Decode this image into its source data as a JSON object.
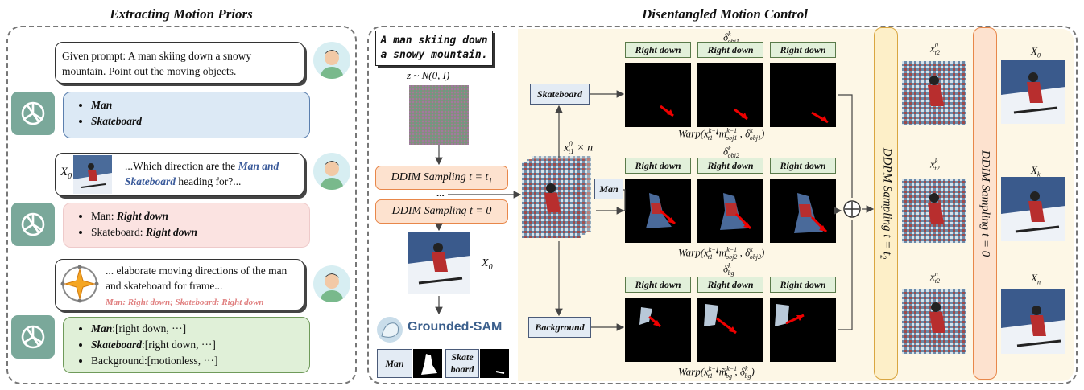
{
  "left": {
    "title": "Extracting Motion Priors",
    "bubble1": "Given prompt: A man skiing down a snowy mountain. Point out the moving objects.",
    "gpt1_items": [
      "Man",
      "Skateboard"
    ],
    "bubble2_label": "X",
    "bubble2_sub": "0",
    "bubble2_pre": "...Which direction are the ",
    "bubble2_em": "Man and Skateboard",
    "bubble2_post": " heading for?...",
    "gpt2": [
      {
        "name": "Man:",
        "dir": "Right down"
      },
      {
        "name": "Skateboard:",
        "dir": "Right down"
      }
    ],
    "bubble3": "... elaborate moving directions of the man and skateboard for frame...",
    "bubble3_red": "Man: Right down; Skateboard: Right down",
    "gpt3": [
      {
        "name": "Man",
        "rest": ":[right down, ···]"
      },
      {
        "name": "Skateboard",
        "rest": ":[right down, ···]"
      },
      {
        "name": "",
        "rest": "Background:[motionless, ···]"
      }
    ]
  },
  "right": {
    "title": "Disentangled Motion Control",
    "prompt": "A man skiing down a snowy mountain.",
    "noise_label": "z ~ N(0, I)",
    "ddim1": "DDIM Sampling  t = t",
    "ddim1_sub": "1",
    "dots": "...",
    "ddim2": "DDIM Sampling  t = 0",
    "x0": "X",
    "x0_sub": "0",
    "xt1n": "x",
    "xt1n_sup": "0",
    "xt1n_sub": "t1",
    "xt1n_post": " × n",
    "grounded": "Grounded-SAM",
    "mask_man": "Man",
    "mask_skate": "Skate board",
    "obj_skateboard": "Skateboard",
    "obj_man": "Man",
    "obj_background": "Background",
    "right_down": "Right down",
    "delta_obj1": "δ",
    "delta_obj1_sup": "k",
    "delta_obj1_sub": "obj1",
    "delta_obj2_sub": "obj2",
    "delta_bg_sub": "bg",
    "warp1": "Warp(x",
    "warp1_full": "Warp(xᵗ¹ᵏ⁻¹ •mᵏ⁻¹obj1 , δᵏobj1)",
    "warp_obj1": "obj1",
    "warp_obj2": "obj2",
    "warp_bg": "bg",
    "ddpm": "DDPM  Sampling   t = t",
    "ddpm_sub": "2",
    "ddim_final": "DDIM  Sampling   t = 0",
    "x_t2_0_sup": "0",
    "x_t2_k_sup": "k",
    "x_t2_n_sup": "n",
    "x_t2_sub": "t2",
    "X0": "X",
    "X0_sub": "0",
    "Xk_sub": "k",
    "Xn_sub": "n"
  },
  "colors": {
    "orange": "#e8874a",
    "ddpm_fill": "#fdefc8",
    "ddim_fill": "#fde2cf",
    "accent_blue": "#3a5a9a",
    "red_text": "#e08080"
  }
}
